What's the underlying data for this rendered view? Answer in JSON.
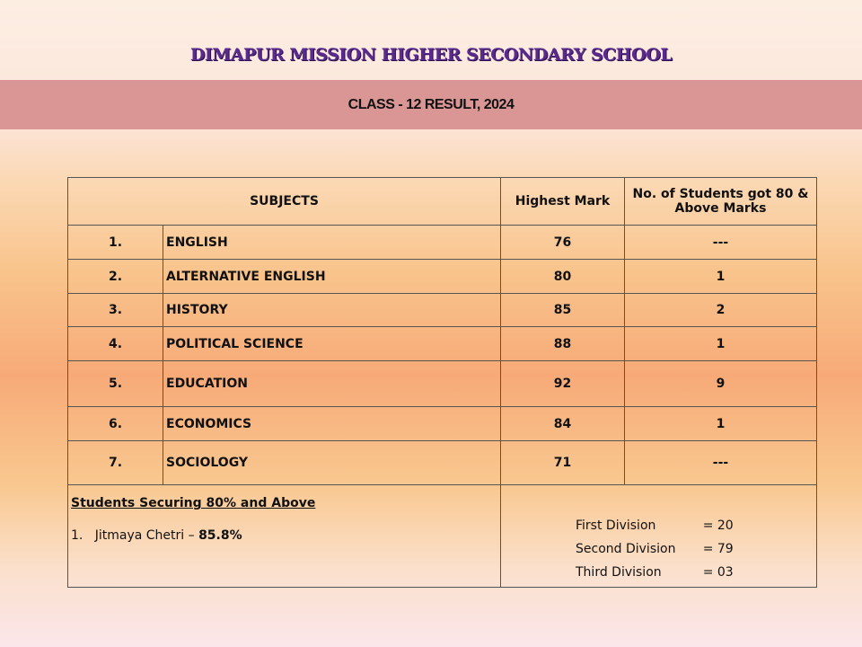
{
  "header": {
    "school": "DIMAPUR MISSION HIGHER SECONDARY SCHOOL",
    "subtitle": "CLASS - 12 RESULT, 2024"
  },
  "table": {
    "columns": [
      "SUBJECTS",
      "Highest Mark",
      "No. of Students got 80 & Above Marks"
    ],
    "rows": [
      {
        "no": "1.",
        "subject": "ENGLISH",
        "highest": "76",
        "count": "---"
      },
      {
        "no": "2.",
        "subject": "ALTERNATIVE  ENGLISH",
        "highest": "80",
        "count": "1"
      },
      {
        "no": "3.",
        "subject": "HISTORY",
        "highest": "85",
        "count": "2"
      },
      {
        "no": "4.",
        "subject": "POLITICAL SCIENCE",
        "highest": "88",
        "count": "1"
      },
      {
        "no": "5.",
        "subject": "EDUCATION",
        "highest": "92",
        "count": "9"
      },
      {
        "no": "6.",
        "subject": "ECONOMICS",
        "highest": "84",
        "count": "1"
      },
      {
        "no": "7.",
        "subject": "SOCIOLOGY",
        "highest": "71",
        "count": "---"
      }
    ]
  },
  "footer": {
    "toppers_heading": "Students Securing 80% and Above",
    "toppers": [
      {
        "no": "1.",
        "name": "Jitmaya Chetri",
        "sep": "–",
        "score": "85.8%"
      }
    ],
    "divisions": [
      {
        "label": "First Division",
        "value": "= 20"
      },
      {
        "label": "Second Division",
        "value": "= 79"
      },
      {
        "label": "Third Division",
        "value": "= 03"
      }
    ]
  }
}
